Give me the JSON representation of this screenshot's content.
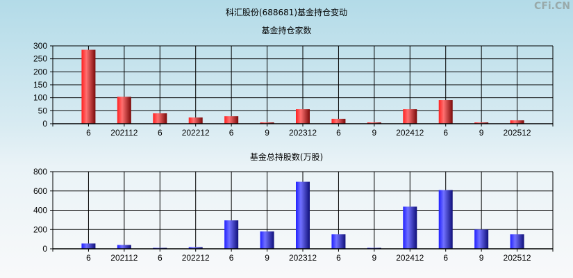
{
  "page_title": "科汇股份(688681)基金持仓变动",
  "watermark": "CFi.CN",
  "chart_data": [
    {
      "type": "bar",
      "title": "基金持仓家数",
      "categories": [
        "6",
        "202112",
        "6",
        "202212",
        "6",
        "9",
        "202312",
        "6",
        "9",
        "202412",
        "6",
        "9",
        "202512"
      ],
      "values": [
        285,
        104,
        40,
        24,
        29,
        5,
        56,
        19,
        5,
        56,
        91,
        5,
        13
      ],
      "ylim": [
        0,
        300
      ],
      "yticks": [
        0,
        50,
        100,
        150,
        200,
        250,
        300
      ],
      "grid": true,
      "color": "#e82020"
    },
    {
      "type": "bar",
      "title": "基金总持股数(万股)",
      "categories": [
        "6",
        "202112",
        "6",
        "202212",
        "6",
        "9",
        "202312",
        "6",
        "9",
        "202412",
        "6",
        "9",
        "202512"
      ],
      "values": [
        55,
        40,
        10,
        17,
        295,
        180,
        695,
        150,
        10,
        437,
        610,
        200,
        150
      ],
      "ylim": [
        0,
        800
      ],
      "yticks": [
        0,
        200,
        400,
        600,
        800
      ],
      "grid": true,
      "color": "#2828e0"
    }
  ]
}
